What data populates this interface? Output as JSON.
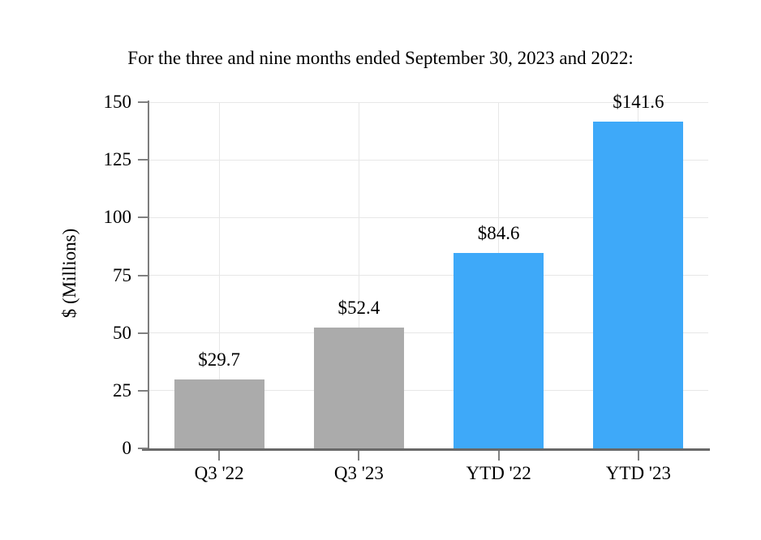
{
  "title": "For the three and nine months ended September 30, 2023 and 2022:",
  "chart_data": {
    "type": "bar",
    "title": "For the three and nine months ended September 30, 2023 and 2022:",
    "categories": [
      "Q3 '22",
      "Q3 '23",
      "YTD '22",
      "YTD '23"
    ],
    "values": [
      29.7,
      52.4,
      84.6,
      141.6
    ],
    "value_labels": [
      "$29.7",
      "$52.4",
      "$84.6",
      "$141.6"
    ],
    "xlabel": "",
    "ylabel": "$ (Millions)",
    "ylim": [
      0,
      150
    ],
    "yticks": [
      0,
      25,
      50,
      75,
      100,
      125,
      150
    ],
    "grid": true,
    "legend": false,
    "bar_colors": [
      "#ABABAB",
      "#ABABAB",
      "#3EA9F9",
      "#3EA9F9"
    ],
    "colors": {
      "gray_bar": "#ABABAB",
      "blue_bar": "#3EA9F9",
      "grid": "#E7E7E7",
      "axis": "#6F6F6F",
      "tick": "#808080",
      "text": "#000000",
      "background": "#FFFFFF"
    }
  }
}
